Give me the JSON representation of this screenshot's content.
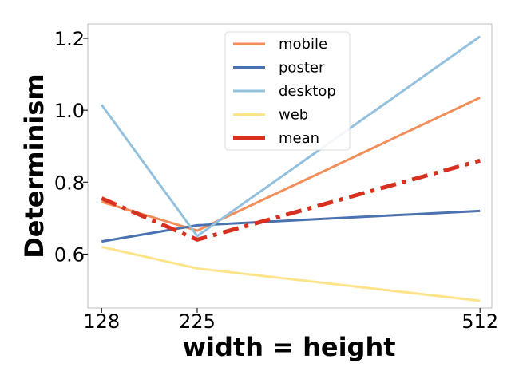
{
  "chart_data": {
    "type": "line",
    "title": "",
    "xlabel": "width = height",
    "ylabel": "Determinism",
    "x": [
      128,
      225,
      512
    ],
    "x_ticks": [
      "128",
      "225",
      "512"
    ],
    "y_ticks": [
      "0.6",
      "0.8",
      "1.0",
      "1.2"
    ],
    "xlim": [
      114,
      524
    ],
    "ylim": [
      0.45,
      1.24
    ],
    "grid": false,
    "legend_position": "top-center",
    "series": [
      {
        "name": "mobile",
        "values": [
          0.745,
          0.665,
          1.035
        ],
        "color": "#f28e5a",
        "style": "solid"
      },
      {
        "name": "poster",
        "values": [
          0.635,
          0.68,
          0.72
        ],
        "color": "#4a72b0",
        "style": "solid"
      },
      {
        "name": "desktop",
        "values": [
          1.015,
          0.65,
          1.205
        ],
        "color": "#93c0dd",
        "style": "solid"
      },
      {
        "name": "web",
        "values": [
          0.62,
          0.56,
          0.47
        ],
        "color": "#fde48a",
        "style": "solid"
      },
      {
        "name": "mean",
        "values": [
          0.755,
          0.64,
          0.86
        ],
        "color": "#d7301f",
        "style": "dashdot"
      }
    ]
  }
}
